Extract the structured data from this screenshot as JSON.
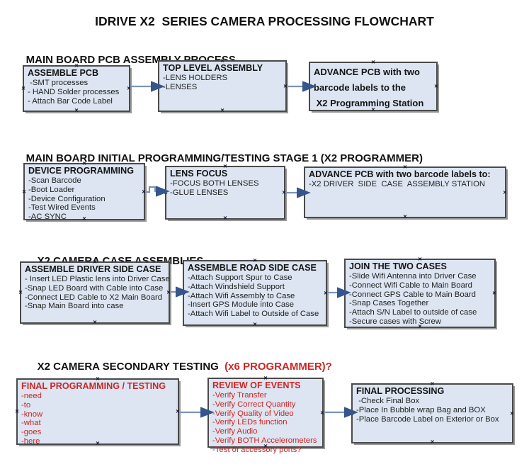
{
  "page_title": "IDRIVE X2  SERIES CAMERA PROCESSING FLOWCHART",
  "icons": {
    "connector_point": "×"
  },
  "colors": {
    "box_fill": "#DCE5F1",
    "box_border": "#4A4A4A",
    "box_shadow": "#999999",
    "arrow_stem": "#7B93B3",
    "arrow_head": "#35558D",
    "red_text": "#CC2626",
    "heading_text": "#111111"
  },
  "sections": [
    {
      "heading": "MAIN BOARD PCB ASSEMBLY PROCESS",
      "boxes": [
        {
          "title": "ASSEMBLE PCB",
          "items": [
            " -SMT processes",
            "- HAND Solder processes",
            "- Attach Bar Code Label"
          ]
        },
        {
          "title": "TOP LEVEL ASSEMBLY",
          "items": [
            "-LENS HOLDERS",
            "-LENSES"
          ]
        },
        {
          "title": "",
          "items": [
            "ADVANCE PCB with two",
            "barcode labels to the",
            " X2 Programming Station"
          ]
        }
      ]
    },
    {
      "heading": "MAIN BOARD INITIAL PROGRAMMING/TESTING STAGE 1 (X2 PROGRAMMER)",
      "boxes": [
        {
          "title": "DEVICE PROGRAMMING",
          "items": [
            "-Scan Barcode",
            "-Boot Loader",
            "-Device Configuration",
            "-Test Wired Events",
            "-AC SYNC"
          ]
        },
        {
          "title": "LENS FOCUS",
          "items": [
            "-FOCUS BOTH LENSES",
            "-GLUE LENSES"
          ]
        },
        {
          "title": "ADVANCE PCB with two barcode labels to:",
          "items": [
            "-X2 DRIVER  SIDE  CASE  ASSEMBLY STATION"
          ]
        }
      ]
    },
    {
      "heading": "X2 CAMERA CASE ASSEMBLIES",
      "boxes": [
        {
          "title": "ASSEMBLE DRIVER SIDE CASE",
          "items": [
            "- Insert LED Plastic lens into Driver Case",
            "-Snap LED Board with Cable into Case",
            "-Connect LED Cable to X2 Main Board",
            "-Snap Main Board into case"
          ]
        },
        {
          "title": "ASSEMBLE ROAD SIDE CASE",
          "items": [
            "-Attach Support Spur to Case",
            "-Attach Windshield Support",
            "-Attach Wifi Assembly to Case",
            "-Insert GPS Module into Case",
            "-Attach Wifi Label to Outside of Case"
          ]
        },
        {
          "title": "JOIN THE TWO CASES",
          "items": [
            "-Slide Wifi Antenna into Driver Case",
            "-Connect Wifi Cable to Main Board",
            "-Connect GPS Cable to Main Board",
            "-Snap Cases Together",
            "-Attach S/N Label to outside of case",
            "-Secure cases with Screw"
          ]
        }
      ]
    },
    {
      "heading": "X2 CAMERA SECONDARY TESTING  ",
      "heading_suffix": "(x6 PROGRAMMER)?",
      "boxes": [
        {
          "title": "FINAL PROGRAMMING / TESTING",
          "text_color": "#CC2626",
          "items": [
            "-need",
            "-to",
            "-know",
            "-what",
            "-goes",
            "-here"
          ]
        },
        {
          "title": "REVIEW OF EVENTS",
          "text_color": "#CC2626",
          "items": [
            "-Verify Transfer",
            "-Verify Correct Quantity",
            "-Verify Quality of Video",
            "-Verify LEDs function",
            "-Verify Audio",
            "-Verify BOTH Accelerometers",
            "-Test of accessory ports?"
          ]
        },
        {
          "title": "FINAL PROCESSING",
          "items": [
            " -Check Final Box",
            "-Place In Bubble wrap Bag and BOX",
            "-Place Barcode Label on Exterior or Box"
          ]
        }
      ]
    }
  ]
}
